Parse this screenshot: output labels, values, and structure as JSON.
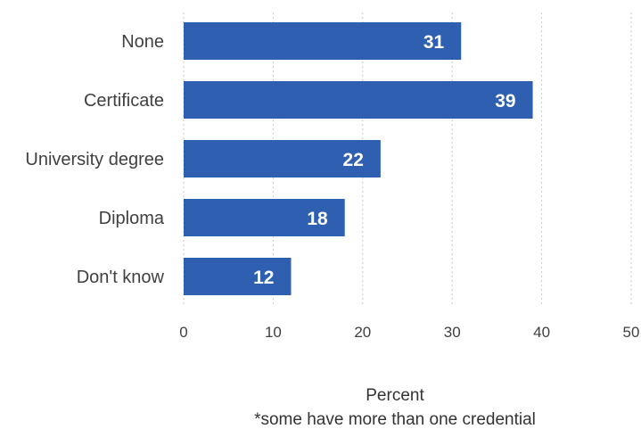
{
  "chart_data": {
    "type": "bar",
    "orientation": "horizontal",
    "categories": [
      "None",
      "Certificate",
      "University degree",
      "Diploma",
      "Don't know"
    ],
    "values": [
      31,
      39,
      22,
      18,
      12
    ],
    "data_labels": [
      "31",
      "39",
      "22",
      "18",
      "12"
    ],
    "xlim": [
      0,
      50
    ],
    "xticks": [
      0,
      10,
      20,
      30,
      40,
      50
    ],
    "xtick_labels": [
      "0",
      "10",
      "20",
      "30",
      "40",
      "50"
    ],
    "xlabel": "Percent",
    "note": "*some have more than one credential",
    "grid": "vertical dashed",
    "bar_color": "#2e5fb0",
    "label_color": "#ffffff"
  }
}
